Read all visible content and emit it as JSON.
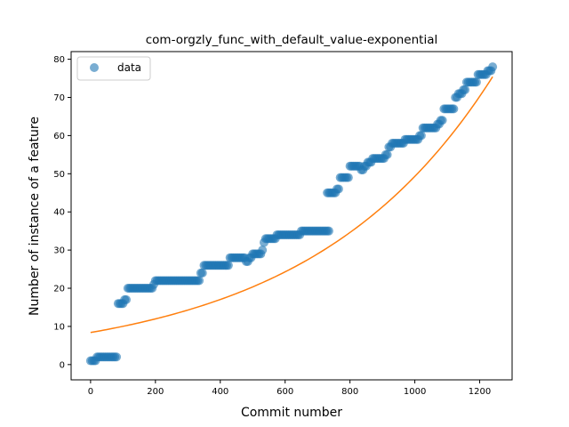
{
  "chart_data": {
    "type": "scatter",
    "title": "com-orgzly_func_with_default_value-exponential",
    "xlabel": "Commit number",
    "ylabel": "Number of instance of a feature",
    "xlim": [
      -60,
      1300
    ],
    "ylim": [
      -4,
      82
    ],
    "xticks": [
      0,
      200,
      400,
      600,
      800,
      1000,
      1200
    ],
    "yticks": [
      0,
      10,
      20,
      30,
      40,
      50,
      60,
      70,
      80
    ],
    "grid": false,
    "legend": {
      "position": "top-left",
      "entries": [
        "data"
      ]
    },
    "colors": {
      "data": "#1f77b4",
      "fit": "#ff7f0e"
    },
    "series": [
      {
        "name": "data",
        "kind": "scatter",
        "steps": [
          [
            0,
            1
          ],
          [
            10,
            1
          ],
          [
            20,
            2
          ],
          [
            40,
            2
          ],
          [
            60,
            2
          ],
          [
            80,
            2
          ],
          [
            85,
            16
          ],
          [
            95,
            16
          ],
          [
            100,
            16
          ],
          [
            105,
            17
          ],
          [
            110,
            17
          ],
          [
            115,
            20
          ],
          [
            140,
            20
          ],
          [
            170,
            20
          ],
          [
            195,
            21
          ],
          [
            200,
            22
          ],
          [
            230,
            22
          ],
          [
            260,
            22
          ],
          [
            290,
            22
          ],
          [
            320,
            22
          ],
          [
            340,
            24
          ],
          [
            350,
            26
          ],
          [
            380,
            26
          ],
          [
            410,
            26
          ],
          [
            430,
            28
          ],
          [
            460,
            28
          ],
          [
            480,
            27
          ],
          [
            490,
            28
          ],
          [
            500,
            29
          ],
          [
            520,
            29
          ],
          [
            530,
            30
          ],
          [
            535,
            32
          ],
          [
            540,
            33
          ],
          [
            560,
            33
          ],
          [
            575,
            34
          ],
          [
            610,
            34
          ],
          [
            640,
            34
          ],
          [
            650,
            35
          ],
          [
            690,
            35
          ],
          [
            735,
            35
          ],
          [
            730,
            45
          ],
          [
            750,
            45
          ],
          [
            760,
            46
          ],
          [
            770,
            49
          ],
          [
            790,
            49
          ],
          [
            800,
            52
          ],
          [
            820,
            52
          ],
          [
            835,
            51
          ],
          [
            845,
            52
          ],
          [
            855,
            53
          ],
          [
            870,
            54
          ],
          [
            890,
            54
          ],
          [
            910,
            55
          ],
          [
            920,
            57
          ],
          [
            930,
            58
          ],
          [
            960,
            58
          ],
          [
            970,
            59
          ],
          [
            1000,
            59
          ],
          [
            1015,
            60
          ],
          [
            1025,
            62
          ],
          [
            1050,
            62
          ],
          [
            1070,
            63
          ],
          [
            1080,
            64
          ],
          [
            1090,
            67
          ],
          [
            1110,
            67
          ],
          [
            1125,
            70
          ],
          [
            1135,
            71
          ],
          [
            1150,
            72
          ],
          [
            1160,
            74
          ],
          [
            1180,
            74
          ],
          [
            1195,
            76
          ],
          [
            1210,
            76
          ],
          [
            1225,
            77
          ],
          [
            1240,
            78
          ]
        ]
      },
      {
        "name": "",
        "kind": "line",
        "fit": {
          "a": 8.4,
          "b": 0.00177
        },
        "x": [
          0,
          100,
          200,
          300,
          400,
          500,
          600,
          700,
          800,
          900,
          1000,
          1100,
          1200,
          1240
        ],
        "y": [
          8.4,
          10.0,
          11.9,
          14.2,
          16.9,
          20.2,
          24.1,
          28.7,
          34.3,
          40.9,
          48.8,
          58.2,
          69.4,
          74.5
        ]
      }
    ]
  }
}
